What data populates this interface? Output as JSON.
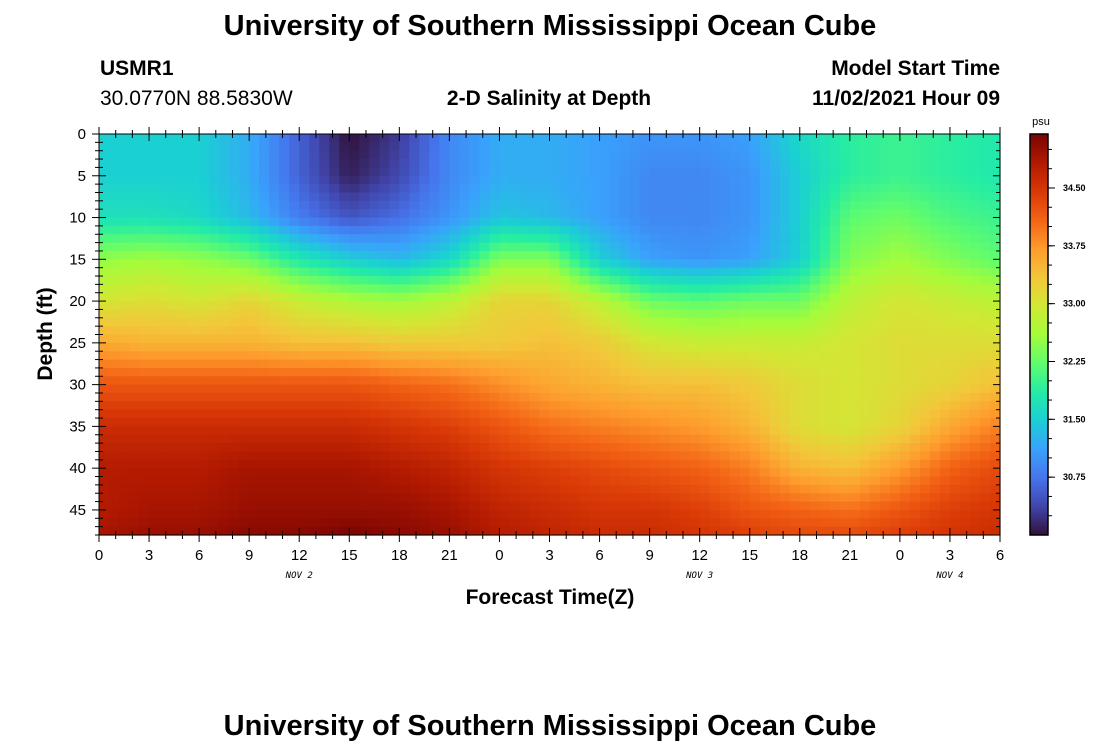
{
  "header": {
    "title": "University of Southern Mississippi Ocean Cube",
    "station_id": "USMR1",
    "coordinates": "30.0770N  88.5830W",
    "plot_title": "2-D Salinity at Depth",
    "model_start_label": "Model Start Time",
    "model_start_value": "11/02/2021 Hour 09"
  },
  "footer": {
    "title": "University of Southern Mississippi Ocean Cube"
  },
  "chart_data": {
    "type": "heatmap",
    "title": "2-D Salinity at Depth",
    "xlabel": "Forecast Time(Z)",
    "ylabel": "Depth (ft)",
    "x_ticks": [
      "0",
      "3",
      "6",
      "9",
      "12",
      "15",
      "18",
      "21",
      "0",
      "3",
      "6",
      "9",
      "12",
      "15",
      "18",
      "21",
      "0",
      "3",
      "6"
    ],
    "x_tick_hours": [
      0,
      3,
      6,
      9,
      12,
      15,
      18,
      21,
      24,
      27,
      30,
      33,
      36,
      39,
      42,
      45,
      48,
      51,
      54
    ],
    "day_labels": [
      {
        "label": "NOV 2",
        "hour": 12
      },
      {
        "label": "NOV 3",
        "hour": 36
      },
      {
        "label": "NOV 4",
        "hour": 51
      }
    ],
    "xlim": [
      0,
      54
    ],
    "y_ticks": [
      "0",
      "5",
      "10",
      "15",
      "20",
      "25",
      "30",
      "35",
      "40",
      "45"
    ],
    "y_tick_values": [
      0,
      5,
      10,
      15,
      20,
      25,
      30,
      35,
      40,
      45
    ],
    "ylim": [
      0,
      48
    ],
    "y_inverted": true,
    "colorbar": {
      "unit": "psu",
      "range": [
        30.0,
        35.2
      ],
      "tick_labels": [
        "34.50",
        "33.75",
        "33.00",
        "32.25",
        "31.50",
        "30.75"
      ],
      "tick_values": [
        34.5,
        33.75,
        33.0,
        32.25,
        31.5,
        30.75
      ],
      "colormap": [
        "#30123b",
        "#4145ab",
        "#4675ed",
        "#39a2fc",
        "#1bcfd4",
        "#24eca6",
        "#61fc6c",
        "#a4fc3b",
        "#d1e834",
        "#f3c63a",
        "#fe9b2d",
        "#f36315",
        "#d93806",
        "#b11901",
        "#7a0403"
      ]
    },
    "depth_levels": [
      0,
      5,
      10,
      15,
      20,
      25,
      30,
      35,
      40,
      45,
      48
    ],
    "hour_columns": [
      0,
      3,
      6,
      9,
      12,
      15,
      18,
      21,
      24,
      27,
      30,
      33,
      36,
      39,
      42,
      45,
      48,
      51,
      54
    ],
    "salinity": [
      [
        31.5,
        31.5,
        31.5,
        31.2,
        30.6,
        30.0,
        30.3,
        30.9,
        31.2,
        31.2,
        31.1,
        31.0,
        31.0,
        31.1,
        31.6,
        31.9,
        32.0,
        31.9,
        31.8
      ],
      [
        31.5,
        31.5,
        31.5,
        31.2,
        30.6,
        30.1,
        30.4,
        30.9,
        31.2,
        31.2,
        31.1,
        30.9,
        30.9,
        31.0,
        31.5,
        31.9,
        32.0,
        31.9,
        31.8
      ],
      [
        31.7,
        31.7,
        31.6,
        31.3,
        30.8,
        30.5,
        30.7,
        31.0,
        31.4,
        31.3,
        31.1,
        30.9,
        30.9,
        31.0,
        31.5,
        32.2,
        32.3,
        32.1,
        32.0
      ],
      [
        32.5,
        32.6,
        32.5,
        32.3,
        31.8,
        31.5,
        31.3,
        31.6,
        32.4,
        32.4,
        31.5,
        31.1,
        31.0,
        31.1,
        31.5,
        32.4,
        32.6,
        32.4,
        32.2
      ],
      [
        33.0,
        33.1,
        33.0,
        33.2,
        32.9,
        32.7,
        32.6,
        32.8,
        33.2,
        33.2,
        32.8,
        32.3,
        32.2,
        32.3,
        32.3,
        32.8,
        33.0,
        32.9,
        32.8
      ],
      [
        33.6,
        33.5,
        33.5,
        33.5,
        33.4,
        33.4,
        33.3,
        33.3,
        33.3,
        33.4,
        33.3,
        33.0,
        32.9,
        32.9,
        32.9,
        33.0,
        33.1,
        33.1,
        33.1
      ],
      [
        34.2,
        34.2,
        34.2,
        34.2,
        34.2,
        34.2,
        34.1,
        34.0,
        33.8,
        33.6,
        33.5,
        33.4,
        33.4,
        33.3,
        33.1,
        33.0,
        33.1,
        33.2,
        33.4
      ],
      [
        34.6,
        34.6,
        34.6,
        34.6,
        34.6,
        34.6,
        34.5,
        34.4,
        34.2,
        34.0,
        33.9,
        33.8,
        33.7,
        33.5,
        33.1,
        33.0,
        33.2,
        33.6,
        33.9
      ],
      [
        34.8,
        34.8,
        34.8,
        34.9,
        34.9,
        34.9,
        34.8,
        34.7,
        34.5,
        34.4,
        34.3,
        34.2,
        34.1,
        33.9,
        33.5,
        33.4,
        33.7,
        34.1,
        34.3
      ],
      [
        34.8,
        34.9,
        34.9,
        35.0,
        35.0,
        35.0,
        35.0,
        34.9,
        34.7,
        34.6,
        34.5,
        34.5,
        34.4,
        34.2,
        34.1,
        34.0,
        34.2,
        34.4,
        34.5
      ],
      [
        34.9,
        35.0,
        35.0,
        35.1,
        35.1,
        35.2,
        35.1,
        35.0,
        34.8,
        34.7,
        34.6,
        34.6,
        34.5,
        34.4,
        34.3,
        34.3,
        34.4,
        34.5,
        34.6
      ]
    ]
  }
}
